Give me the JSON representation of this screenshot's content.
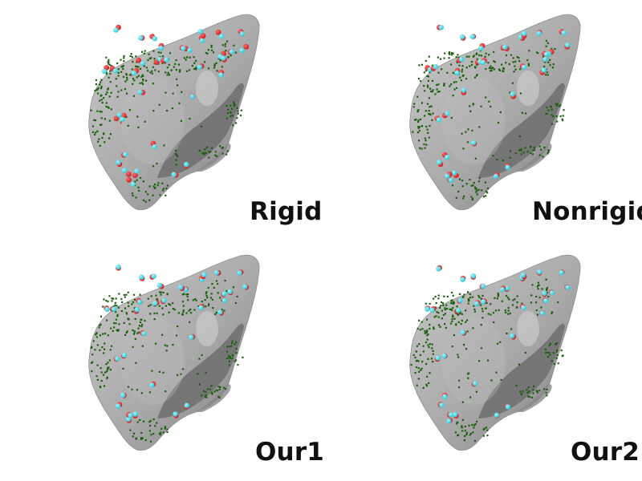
{
  "panels": [
    {
      "label": "Rigid"
    },
    {
      "label": "Nonrigid"
    },
    {
      "label": "Our1"
    },
    {
      "label": "Our2"
    }
  ],
  "colors": {
    "surface": "#a9a9a9",
    "surface_light": "#c8c8c8",
    "surface_dark": "#7e7e7e",
    "point_cloud": "#1e5f12",
    "target_marker": "#cc1f27",
    "source_marker": "#2fc8d4",
    "error_line": "#e03030"
  },
  "icons": [
    "liver-mesh",
    "point-cloud",
    "landmark-marker"
  ]
}
